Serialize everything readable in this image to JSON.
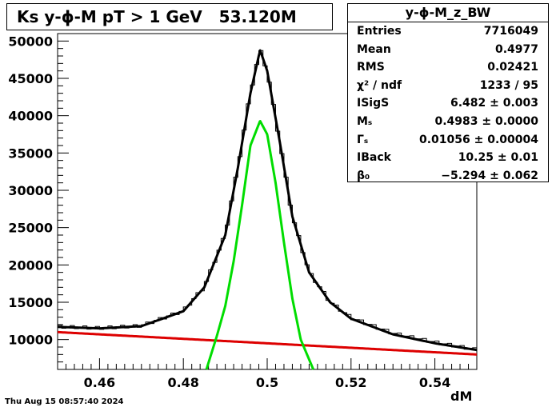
{
  "title": "Ks y-ϕ-M pT > 1 GeV   53.120M",
  "stats": {
    "name": "y-ϕ-M_z_BW",
    "rows": [
      {
        "label": "Entries",
        "value": "7716049"
      },
      {
        "label": "Mean",
        "value": "0.4977"
      },
      {
        "label": "RMS",
        "value": "0.02421"
      },
      {
        "label": "χ² / ndf",
        "value": "1233 / 95"
      },
      {
        "label": "ISigS",
        "value": "6.482 ± 0.003"
      },
      {
        "label": "Mₛ",
        "value": "0.4983 ± 0.0000"
      },
      {
        "label": "Γₛ",
        "value": "0.01056 ± 0.00004"
      },
      {
        "label": "IBack",
        "value": "10.25 ± 0.01"
      },
      {
        "label": "β₀",
        "value": "−5.294 ± 0.062"
      }
    ]
  },
  "footer": {
    "timestamp": "Thu Aug 15 08:57:40 2024"
  },
  "chart_data": {
    "type": "line",
    "title": "Ks y-ϕ-M pT > 1 GeV   53.120M",
    "xlabel": "dM",
    "ylabel": "",
    "xlim": [
      0.45,
      0.55
    ],
    "ylim": [
      6000,
      51000
    ],
    "x_ticks": [
      "0.46",
      "0.48",
      "0.5",
      "0.52",
      "0.54"
    ],
    "y_ticks": [
      "10000",
      "15000",
      "20000",
      "25000",
      "30000",
      "35000",
      "40000",
      "45000",
      "50000"
    ],
    "series": [
      {
        "role": "histogram",
        "color": "#000000",
        "x": [
          0.45,
          0.46,
          0.47,
          0.48,
          0.485,
          0.49,
          0.493,
          0.496,
          0.4983,
          0.5,
          0.503,
          0.506,
          0.51,
          0.515,
          0.52,
          0.53,
          0.54,
          0.55
        ],
        "y": [
          11700,
          11500,
          11800,
          13800,
          17000,
          24000,
          33000,
          43000,
          48800,
          46000,
          36500,
          26500,
          19000,
          15000,
          12900,
          10800,
          9600,
          8600
        ]
      },
      {
        "role": "total fit",
        "color": "#000000",
        "x": [
          0.45,
          0.46,
          0.47,
          0.48,
          0.485,
          0.49,
          0.493,
          0.496,
          0.4983,
          0.5,
          0.503,
          0.506,
          0.51,
          0.515,
          0.52,
          0.53,
          0.54,
          0.55
        ],
        "y": [
          11700,
          11500,
          11800,
          13800,
          17000,
          24000,
          33000,
          43000,
          48800,
          46000,
          36500,
          26500,
          19000,
          15000,
          12800,
          10700,
          9500,
          8600
        ]
      },
      {
        "role": "signal",
        "color": "#00dd00",
        "x": [
          0.4855,
          0.488,
          0.49,
          0.492,
          0.494,
          0.496,
          0.4983,
          0.5,
          0.502,
          0.504,
          0.506,
          0.508,
          0.511
        ],
        "y": [
          6000,
          10500,
          14500,
          20500,
          28000,
          36000,
          39300,
          37500,
          31000,
          23000,
          15500,
          10000,
          6000
        ]
      },
      {
        "role": "background",
        "color": "#dd0000",
        "x": [
          0.45,
          0.55
        ],
        "y": [
          11000,
          8000
        ]
      }
    ]
  }
}
